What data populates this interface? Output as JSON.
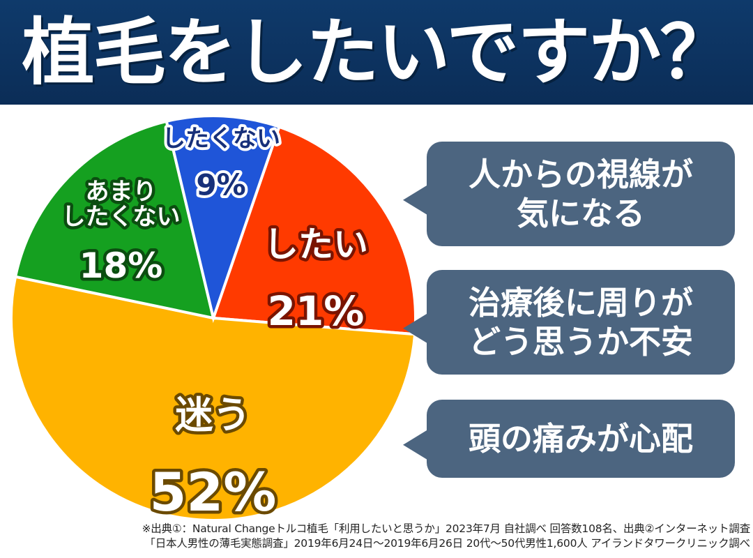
{
  "header": {
    "title": "植毛をしたいですか？"
  },
  "chart_data": {
    "type": "pie",
    "slices": [
      {
        "label": "したい",
        "percent_label": "21%",
        "value": 21,
        "color": "#ff3a00"
      },
      {
        "label": "迷う",
        "percent_label": "52%",
        "value": 52,
        "color": "#ffb300"
      },
      {
        "label": "あまり\nしたくない",
        "percent_label": "18%",
        "value": 18,
        "color": "#15a020"
      },
      {
        "label": "したくない",
        "percent_label": "9%",
        "value": 9,
        "color": "#1f55d8"
      }
    ]
  },
  "bubbles": [
    {
      "text": "人からの視線が\n気になる"
    },
    {
      "text": "治療後に周りが\nどう思うか不安"
    },
    {
      "text": "頭の痛みが心配"
    }
  ],
  "sources": {
    "line1": "※出典①：Natural Changeトルコ植毛「利用したいと思うか」2023年7月 自社調べ 回答数108名、出典②インターネット調査",
    "line2": "「日本人男性の薄毛実態調査」2019年6月24日〜2019年6月26日 20代〜50代男性1,600人 アイランドタワークリニック調べ"
  }
}
